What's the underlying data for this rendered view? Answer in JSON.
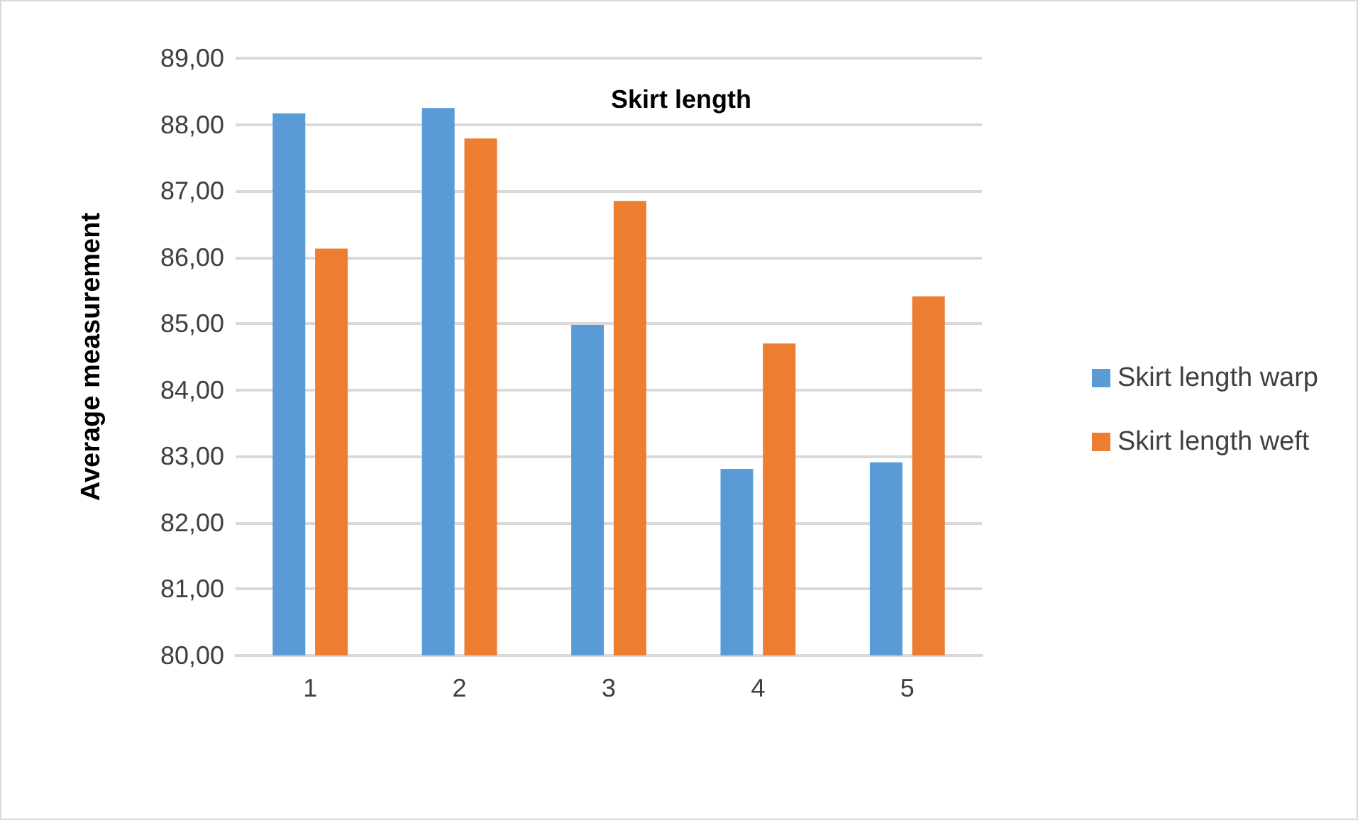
{
  "chart_data": {
    "type": "bar",
    "title": "Skirt length",
    "ylabel": "Average measurement",
    "categories": [
      "1",
      "2",
      "3",
      "4",
      "5"
    ],
    "series": [
      {
        "name": "Skirt length warp",
        "color": "#5b9bd5",
        "values": [
          88.17,
          88.25,
          84.98,
          82.81,
          82.91
        ]
      },
      {
        "name": "Skirt length weft",
        "color": "#ed7d31",
        "values": [
          86.13,
          87.79,
          86.85,
          84.7,
          85.41
        ]
      }
    ],
    "ylim": [
      80,
      89
    ],
    "yticks": [
      {
        "value": 80,
        "label": "80,00"
      },
      {
        "value": 81,
        "label": "81,00"
      },
      {
        "value": 82,
        "label": "82,00"
      },
      {
        "value": 83,
        "label": "83,00"
      },
      {
        "value": 84,
        "label": "84,00"
      },
      {
        "value": 85,
        "label": "85,00"
      },
      {
        "value": 86,
        "label": "86,00"
      },
      {
        "value": 87,
        "label": "87,00"
      },
      {
        "value": 88,
        "label": "88,00"
      },
      {
        "value": 89,
        "label": "89,00"
      }
    ],
    "grid": "y",
    "legend": "right"
  }
}
